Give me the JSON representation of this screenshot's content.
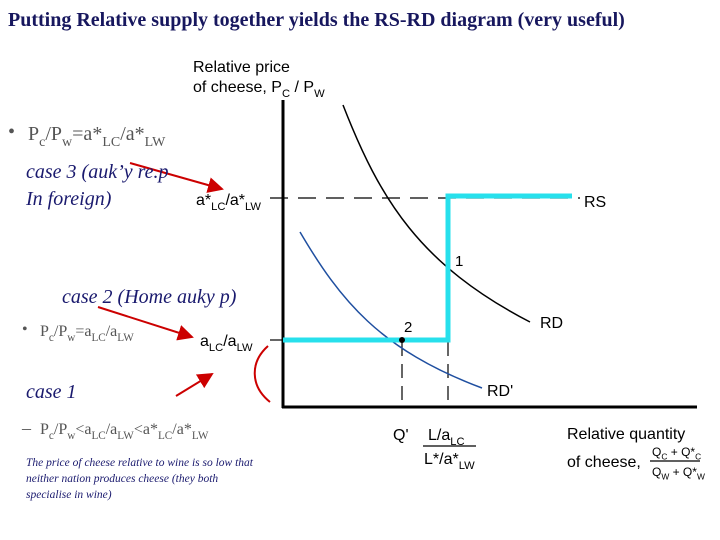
{
  "title": "Putting Relative supply together yields the RS-RD diagram (very useful)",
  "left": {
    "condition_3": [
      "P",
      "c",
      "/P",
      "w",
      "=a*",
      "LC",
      "/a*",
      "LW"
    ],
    "case_3": [
      "case 3 (auk’y re.p",
      "In foreign)"
    ],
    "case_2": "case 2 (Home auky p)",
    "condition_2": [
      "P",
      "c",
      "/P",
      "w",
      "=a",
      "LC",
      "/a",
      "LW"
    ],
    "case_1": "case 1",
    "condition_1": [
      "P",
      "c",
      "/P",
      "w",
      "<a",
      "LC",
      "/a",
      "LW",
      "<a*",
      "LC",
      "/a*",
      "LW"
    ],
    "note": [
      "The price of cheese relative to wine is so low that",
      "neither nation produces cheese (they both",
      "specialise in wine)"
    ]
  },
  "diagram": {
    "y_axis_label": [
      "Relative price",
      [
        "of cheese, P",
        "C",
        " / P",
        "W"
      ]
    ],
    "upper_ratio": [
      "a*",
      "LC",
      "/a*",
      "LW"
    ],
    "lower_ratio": [
      "a",
      "LC",
      "/a",
      "LW"
    ],
    "rs": "RS",
    "rd": "RD",
    "rd_prime": "RD'",
    "point_1": "1",
    "point_2": "2",
    "q_prime": "Q'",
    "l_ratio_num": [
      "L/a",
      "LC"
    ],
    "l_ratio_den": [
      "L*/a*",
      "LW"
    ],
    "x_axis_label": [
      "Relative quantity",
      "of cheese,"
    ],
    "x_num": [
      "Q",
      "C",
      " + Q*",
      "C"
    ],
    "x_den": [
      "Q",
      "W",
      " + Q*",
      "W"
    ]
  }
}
